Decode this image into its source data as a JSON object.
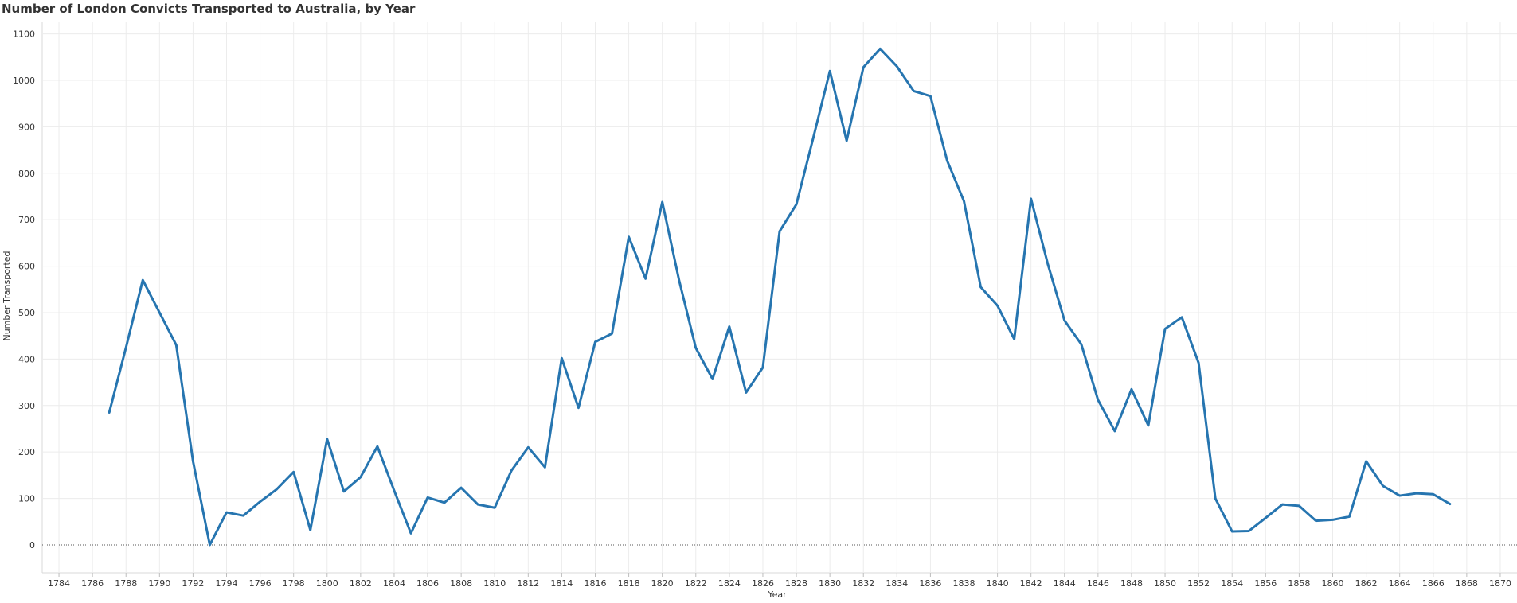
{
  "chart_data": {
    "type": "line",
    "title": "Number of London Convicts Transported to Australia, by Year",
    "xlabel": "Year",
    "ylabel": "Number Transported",
    "xlim": [
      1783,
      1871
    ],
    "ylim": [
      -60,
      1125
    ],
    "x_ticks": [
      1784,
      1786,
      1788,
      1790,
      1792,
      1794,
      1796,
      1798,
      1800,
      1802,
      1804,
      1806,
      1808,
      1810,
      1812,
      1814,
      1816,
      1818,
      1820,
      1822,
      1824,
      1826,
      1828,
      1830,
      1832,
      1834,
      1836,
      1838,
      1840,
      1842,
      1844,
      1846,
      1848,
      1850,
      1852,
      1854,
      1856,
      1858,
      1860,
      1862,
      1864,
      1866,
      1868,
      1870
    ],
    "y_ticks": [
      0,
      100,
      200,
      300,
      400,
      500,
      600,
      700,
      800,
      900,
      1000,
      1100
    ],
    "grid": true,
    "series_color": "#2675b0",
    "series": [
      {
        "x": [
          1787,
          1788,
          1789,
          1790,
          1791,
          1792,
          1793,
          1794,
          1795,
          1796,
          1797,
          1798,
          1799,
          1800,
          1801,
          1802,
          1803,
          1804,
          1805,
          1806,
          1807,
          1808,
          1809,
          1810,
          1811,
          1812,
          1813,
          1814,
          1815,
          1816,
          1817,
          1818,
          1819,
          1820,
          1821,
          1822,
          1823,
          1824,
          1825,
          1826,
          1827,
          1828,
          1829,
          1830,
          1831,
          1832,
          1833,
          1834,
          1835,
          1836,
          1837,
          1838,
          1839,
          1840,
          1841,
          1842,
          1843,
          1844,
          1845,
          1846,
          1847,
          1848,
          1849,
          1850,
          1851,
          1852,
          1853,
          1854,
          1855,
          1856,
          1857,
          1858,
          1859,
          1860,
          1861,
          1862,
          1863,
          1864,
          1865,
          1866,
          1867
        ],
        "values": [
          285,
          425,
          570,
          500,
          430,
          180,
          0,
          70,
          63,
          93,
          120,
          157,
          32,
          228,
          115,
          146,
          212,
          117,
          25,
          102,
          91,
          123,
          87,
          80,
          160,
          210,
          167,
          402,
          295,
          437,
          455,
          663,
          573,
          738,
          570,
          424,
          357,
          470,
          328,
          382,
          675,
          733,
          875,
          1020,
          870,
          1028,
          1068,
          1030,
          977,
          966,
          827,
          740,
          555,
          515,
          443,
          745,
          605,
          483,
          432,
          312,
          245,
          335,
          257,
          465,
          490,
          392,
          100,
          29,
          30,
          58,
          87,
          84,
          52,
          54,
          61,
          180,
          127,
          106,
          111,
          109,
          88
        ]
      }
    ]
  }
}
